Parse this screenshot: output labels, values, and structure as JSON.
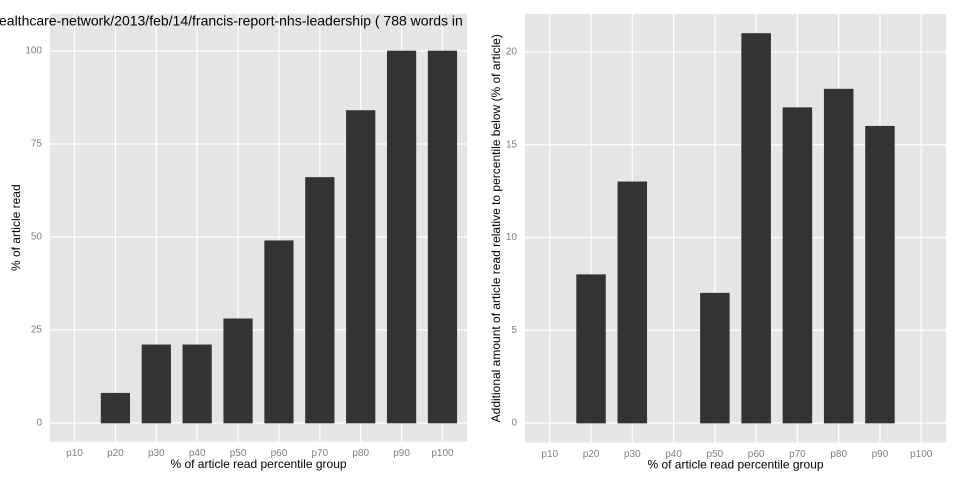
{
  "chart_data": [
    {
      "type": "bar",
      "title": "ealthcare-network/2013/feb/14/francis-report-nhs-leadership ( 788 words in",
      "x_label": "% of article read percentile group",
      "y_label": "% of article read",
      "categories": [
        "p10",
        "p20",
        "p30",
        "p40",
        "p50",
        "p60",
        "p70",
        "p80",
        "p90",
        "p100"
      ],
      "values": [
        0,
        8,
        21,
        21,
        28,
        49,
        66,
        84,
        100,
        100
      ],
      "color": "#333333",
      "ylim": [
        -5,
        110
      ],
      "yticks": [
        0,
        25,
        50,
        75,
        100
      ],
      "grid": true
    },
    {
      "type": "bar",
      "x_label": "% of article read percentile group",
      "y_label": "Additional amount of article read relative to percentile below (% of article)",
      "categories": [
        "p10",
        "p20",
        "p30",
        "p40",
        "p50",
        "p60",
        "p70",
        "p80",
        "p90",
        "p100"
      ],
      "values": [
        0,
        8,
        13,
        0,
        7,
        21,
        17,
        18,
        16,
        0
      ],
      "color": "#333333",
      "ylim": [
        -1.05,
        22.05
      ],
      "yticks": [
        0,
        5,
        10,
        15,
        20
      ],
      "grid": true
    }
  ]
}
